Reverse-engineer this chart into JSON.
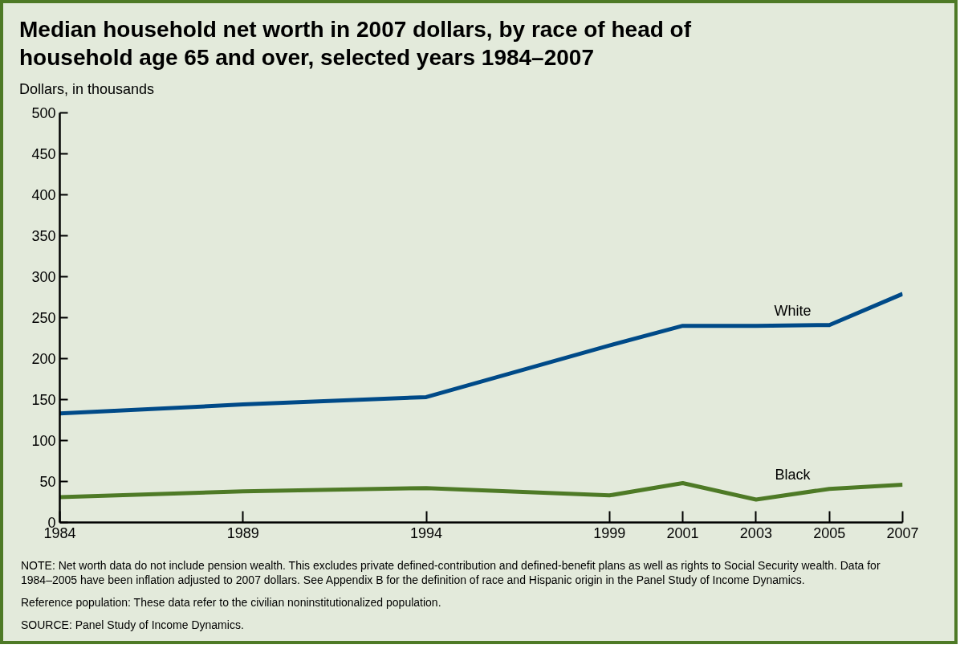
{
  "chart_data": {
    "type": "line",
    "title": "Median household net worth in 2007 dollars, by race of head of household age 65 and over, selected years 1984–2007",
    "ylabel": "Dollars, in thousands",
    "x": [
      1984,
      1989,
      1994,
      1999,
      2001,
      2003,
      2005,
      2007
    ],
    "series": [
      {
        "name": "White",
        "color": "#004a88",
        "values": [
          133,
          144,
          153,
          216,
          240,
          240,
          241,
          279
        ]
      },
      {
        "name": "Black",
        "color": "#4e7a26",
        "values": [
          31,
          38,
          42,
          33,
          48,
          28,
          41,
          46
        ]
      }
    ],
    "xlim": [
      1984,
      2007
    ],
    "xticks": [
      1984,
      1989,
      1994,
      1999,
      2001,
      2003,
      2005,
      2007
    ],
    "ylim": [
      0,
      500
    ],
    "yticks": [
      0,
      50,
      100,
      150,
      200,
      250,
      300,
      350,
      400,
      450,
      500
    ],
    "grid": false,
    "legend": false,
    "marker": "none",
    "line_style": "solid",
    "annotations": [
      "NOTE: Net worth data do not include pension wealth.  This excludes private defined-contribution and defined-benefit plans as well as rights to Social Security wealth.  Data for 1984–2005 have been inflation adjusted to 2007 dollars.  See Appendix B for the definition of race and Hispanic origin in the Panel Study of Income Dynamics.",
      "Reference population: These data refer to the civilian noninstitutionalized population.",
      "SOURCE: Panel Study of Income Dynamics."
    ]
  }
}
